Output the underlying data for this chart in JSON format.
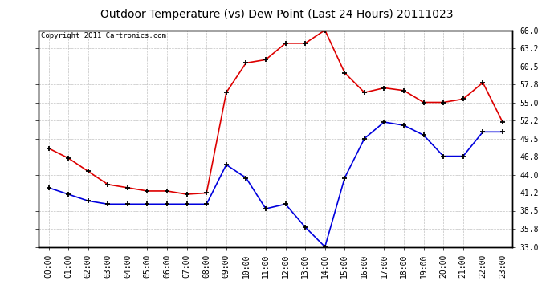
{
  "title": "Outdoor Temperature (vs) Dew Point (Last 24 Hours) 20111023",
  "copyright": "Copyright 2011 Cartronics.com",
  "x_labels": [
    "00:00",
    "01:00",
    "02:00",
    "03:00",
    "04:00",
    "05:00",
    "06:00",
    "07:00",
    "08:00",
    "09:00",
    "10:00",
    "11:00",
    "12:00",
    "13:00",
    "14:00",
    "15:00",
    "16:00",
    "17:00",
    "18:00",
    "19:00",
    "20:00",
    "21:00",
    "22:00",
    "23:00"
  ],
  "temp_data": [
    42.0,
    41.0,
    40.0,
    39.5,
    39.5,
    39.5,
    39.5,
    39.5,
    39.5,
    45.5,
    43.5,
    38.8,
    39.5,
    36.0,
    33.0,
    43.5,
    49.5,
    52.0,
    51.5,
    50.0,
    46.8,
    46.8,
    50.5,
    50.5
  ],
  "dew_data": [
    48.0,
    46.5,
    44.5,
    42.5,
    42.0,
    41.5,
    41.5,
    41.0,
    41.2,
    56.5,
    61.0,
    61.5,
    64.0,
    64.0,
    66.0,
    59.5,
    56.5,
    57.2,
    56.8,
    55.0,
    55.0,
    55.5,
    58.0,
    52.0
  ],
  "temp_color": "#0000dd",
  "dew_color": "#dd0000",
  "bg_color": "#ffffff",
  "plot_bg_color": "#ffffff",
  "grid_color": "#bbbbbb",
  "ylim": [
    33.0,
    66.0
  ],
  "yticks": [
    33.0,
    35.8,
    38.5,
    41.2,
    44.0,
    46.8,
    49.5,
    52.2,
    55.0,
    57.8,
    60.5,
    63.2,
    66.0
  ],
  "title_fontsize": 10,
  "copyright_fontsize": 6.5,
  "tick_fontsize": 7
}
